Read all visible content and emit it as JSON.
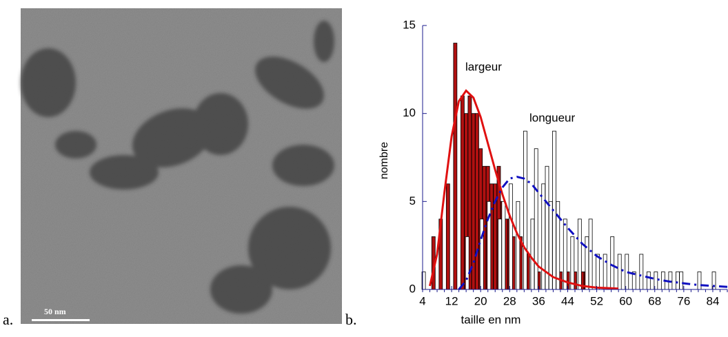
{
  "figure": {
    "panel_labels": [
      "a.",
      "b."
    ],
    "scale_bar": "50 nm"
  },
  "chart_data": {
    "type": "bar",
    "x_label": "taille en nm",
    "y_label": "nombre",
    "xlim": [
      4,
      88
    ],
    "xticks": [
      4,
      12,
      20,
      28,
      36,
      44,
      52,
      60,
      68,
      76,
      84
    ],
    "ylim": [
      0,
      15
    ],
    "yticks": [
      0,
      5,
      10,
      15
    ],
    "axis_color": "#1a1a8c",
    "series": [
      {
        "name": "largeur",
        "color": "#b01010",
        "outline": "#000000",
        "x": [
          7,
          9,
          11,
          13,
          15,
          16,
          17,
          18,
          19,
          20,
          21,
          22,
          23,
          24,
          25,
          26,
          27,
          28,
          29,
          31,
          33,
          35,
          36,
          38,
          40,
          42,
          44,
          46,
          48,
          49
        ],
        "values": [
          3,
          4,
          6,
          14,
          11,
          10,
          11,
          10,
          10,
          8,
          7,
          7,
          6,
          6,
          7,
          5,
          4,
          4,
          3,
          3,
          2,
          2,
          1,
          1,
          2,
          1,
          1,
          1,
          1,
          1
        ]
      },
      {
        "name": "longueur",
        "color": "#ffffff",
        "outline": "#000000",
        "x": [
          4,
          16,
          20,
          22,
          25,
          26,
          28,
          30,
          32,
          34,
          35,
          37,
          38,
          39,
          40,
          41,
          43,
          45,
          47,
          49,
          50,
          52,
          54,
          56,
          58,
          60,
          62,
          64,
          66,
          68,
          70,
          72,
          74,
          75,
          80,
          84
        ],
        "values": [
          1,
          3,
          4,
          5,
          4,
          5,
          6,
          5,
          9,
          4,
          8,
          6,
          7,
          5,
          9,
          5,
          4,
          3,
          4,
          3,
          4,
          2,
          2,
          3,
          2,
          2,
          1,
          2,
          1,
          1,
          1,
          1,
          1,
          1,
          1,
          1
        ]
      }
    ],
    "curves": [
      {
        "color": "#e01010",
        "dash": false,
        "x": [
          6,
          8,
          10,
          12,
          14,
          16,
          18,
          20,
          22,
          24,
          26,
          28,
          30,
          32,
          34,
          36,
          40,
          44,
          48,
          52,
          58
        ],
        "values": [
          0.2,
          2,
          5.5,
          8.7,
          10.7,
          11.3,
          10.9,
          9.8,
          8.3,
          6.8,
          5.4,
          4.2,
          3.2,
          2.4,
          1.8,
          1.3,
          0.7,
          0.4,
          0.2,
          0.1,
          0.05
        ]
      },
      {
        "color": "#1010c0",
        "dash": true,
        "x": [
          14,
          16,
          18,
          20,
          22,
          24,
          26,
          28,
          30,
          32,
          34,
          36,
          40,
          44,
          48,
          52,
          56,
          60,
          64,
          68,
          72,
          76,
          80,
          84,
          88
        ],
        "values": [
          0,
          0.5,
          1.5,
          2.8,
          4,
          5,
          5.8,
          6.3,
          6.4,
          6.3,
          6,
          5.5,
          4.5,
          3.5,
          2.6,
          1.9,
          1.4,
          1,
          0.8,
          0.6,
          0.45,
          0.35,
          0.25,
          0.2,
          0.15
        ]
      }
    ]
  }
}
